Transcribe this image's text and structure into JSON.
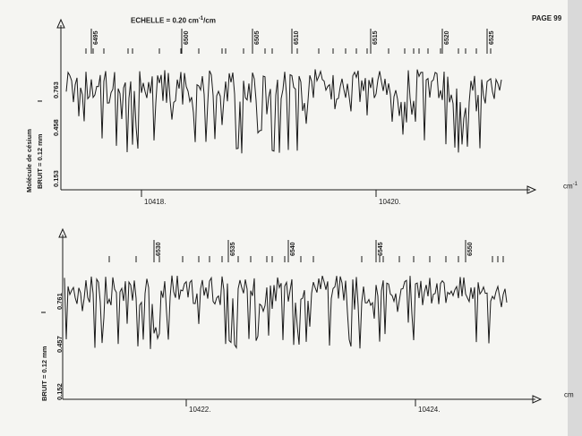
{
  "header": {
    "scale_prefix": "ECHELLE = 0.20 cm",
    "scale_exp": "-1",
    "scale_suffix": "/cm",
    "page": "PAGE 99"
  },
  "colors": {
    "ink": "#1a1a1a",
    "paper": "#f5f5f2",
    "background": "#d9d9d9"
  },
  "chart_data": [
    {
      "type": "line",
      "title": "",
      "xlabel": "cm",
      "xlabel_exp": "-1",
      "molecule_label": "Molécule de césium",
      "noise_label": "BRUIT = 0.12 mm",
      "y_axis_letter": "I",
      "yticks": [
        "0.153",
        "0.458",
        "0.763"
      ],
      "xticks": [
        "10418.",
        "10420."
      ],
      "line_numbers": [
        "6495",
        "6500",
        "6505",
        "6510",
        "6515",
        "6520",
        "6525"
      ],
      "xlim": [
        10417.43,
        10421.0
      ],
      "ylim": [
        0.0,
        1.0
      ]
    },
    {
      "type": "line",
      "title": "",
      "xlabel": "cm",
      "xlabel_exp": "",
      "molecule_label": "",
      "noise_label": "BRUIT = 0.12 mm",
      "y_axis_letter": "I",
      "yticks": [
        "0.152",
        "0.457",
        "0.761"
      ],
      "xticks": [
        "10422.",
        "10424."
      ],
      "line_numbers": [
        "6530",
        "6535",
        "6540",
        "6545",
        "6550"
      ],
      "xlim": [
        10421.0,
        10424.9
      ],
      "ylim": [
        0.0,
        1.0
      ]
    }
  ]
}
